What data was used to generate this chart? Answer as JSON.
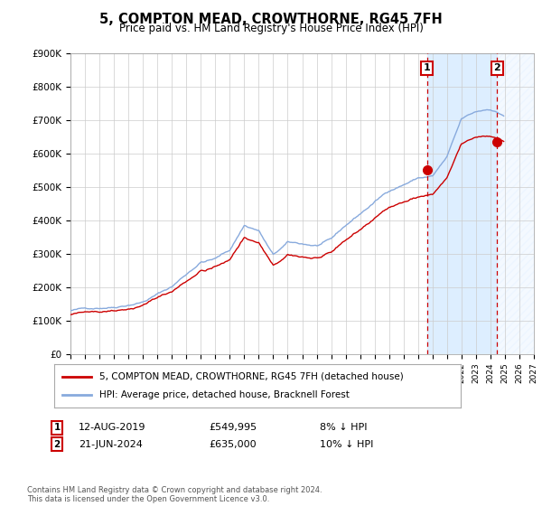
{
  "title": "5, COMPTON MEAD, CROWTHORNE, RG45 7FH",
  "subtitle": "Price paid vs. HM Land Registry's House Price Index (HPI)",
  "legend_line1": "5, COMPTON MEAD, CROWTHORNE, RG45 7FH (detached house)",
  "legend_line2": "HPI: Average price, detached house, Bracknell Forest",
  "annotation1_label": "1",
  "annotation1_date": "12-AUG-2019",
  "annotation1_price": "£549,995",
  "annotation1_hpi": "8% ↓ HPI",
  "annotation1_year": 2019.62,
  "annotation1_value": 549995,
  "annotation2_label": "2",
  "annotation2_date": "21-JUN-2024",
  "annotation2_price": "£635,000",
  "annotation2_hpi": "10% ↓ HPI",
  "annotation2_year": 2024.47,
  "annotation2_value": 635000,
  "price_paid_color": "#cc0000",
  "hpi_color": "#88aadd",
  "shaded_solid_color": "#ddeeff",
  "annotation_box_color": "#cc0000",
  "grid_color": "#cccccc",
  "background_color": "#ffffff",
  "xmin": 1995,
  "xmax": 2027,
  "ymin": 0,
  "ymax": 900000,
  "footnote": "Contains HM Land Registry data © Crown copyright and database right 2024.\nThis data is licensed under the Open Government Licence v3.0."
}
